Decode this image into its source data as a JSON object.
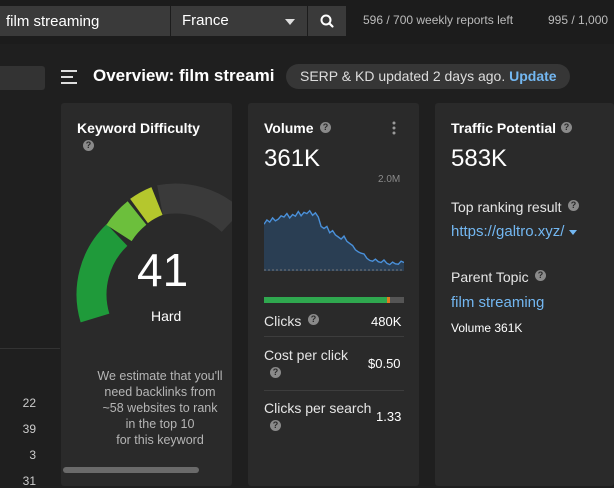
{
  "toolbar": {
    "search_value": "film streaming",
    "country": "France",
    "usage_reports": "596 / 700 weekly reports left",
    "usage_other": "995 / 1,000"
  },
  "left_rows": [
    "22",
    "39",
    "3",
    "31"
  ],
  "header": {
    "title": "Overview: film streami",
    "update_text": "SERP & KD updated 2 days ago.",
    "update_link": "Update"
  },
  "kd": {
    "title": "Keyword Difficulty",
    "value": "41",
    "level": "Hard",
    "estimate": [
      "We estimate that you'll",
      "need backlinks from",
      "~58 websites to rank",
      "in the top 10",
      "for this keyword"
    ]
  },
  "volume": {
    "title": "Volume",
    "value": "361K",
    "chart_max_label": "2.0M",
    "clicks_label": "Clicks",
    "clicks_value": "480K",
    "clicks_bar": {
      "green": 0.88,
      "orange": 0.02,
      "gray": 0.1
    },
    "cpc_label": "Cost per click",
    "cpc_value": "$0.50",
    "cps_label": "Clicks per search",
    "cps_value": "1.33"
  },
  "traffic": {
    "title": "Traffic Potential",
    "value": "583K",
    "top_result_label": "Top ranking result",
    "top_result_link": "https://galtro.xyz/",
    "parent_topic_label": "Parent Topic",
    "parent_topic_link": "film streaming",
    "parent_volume": "Volume 361K"
  },
  "colors": {
    "link": "#73b7f1",
    "kd_green_dark": "#1f9a3a",
    "kd_green": "#6cbf3c",
    "kd_yellow": "#b5c72d",
    "clicks_green": "#2fa84f",
    "clicks_orange": "#e27a1f"
  },
  "chart_data": {
    "type": "area",
    "title": "",
    "ylim": [
      0,
      2000000
    ],
    "values": [
      1100000,
      1200000,
      1150000,
      1250000,
      1180000,
      1220000,
      1300000,
      1270000,
      1350000,
      1250000,
      1330000,
      1290000,
      1400000,
      1300000,
      1380000,
      1350000,
      1420000,
      1310000,
      1370000,
      1270000,
      1050000,
      1000000,
      1050000,
      900000,
      950000,
      850000,
      800000,
      750000,
      820000,
      700000,
      650000,
      600000,
      500000,
      450000,
      420000,
      400000,
      300000,
      250000,
      230000,
      280000,
      220000,
      200000,
      260000,
      180000,
      150000,
      210000,
      170000,
      160000,
      230000,
      200000
    ]
  }
}
